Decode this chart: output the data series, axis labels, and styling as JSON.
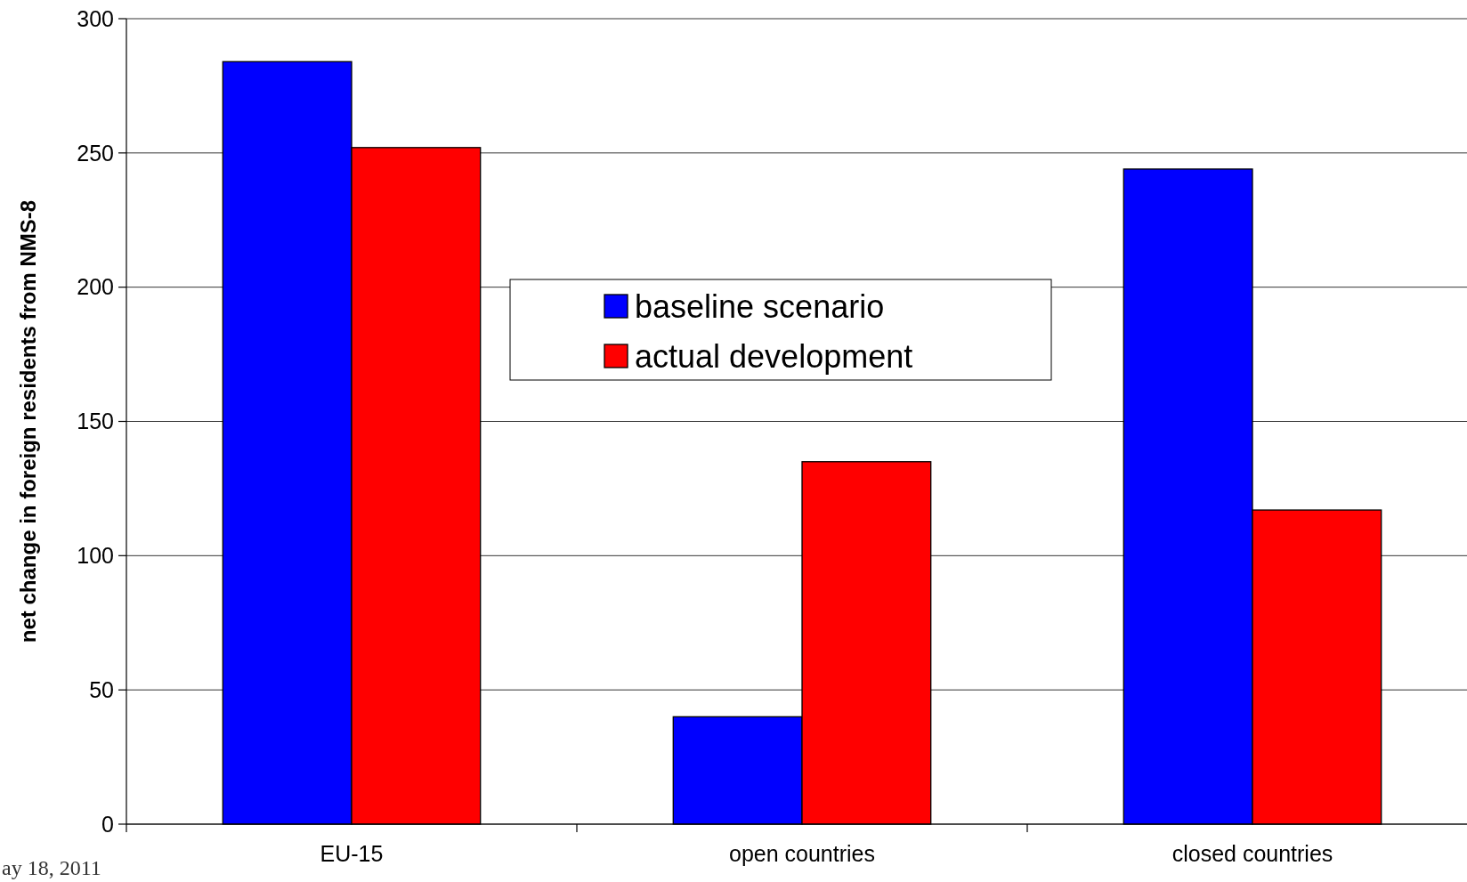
{
  "chart_data": {
    "type": "bar",
    "ylabel": "net change in foreign residents from NMS-8",
    "categories": [
      "EU-15",
      "open countries",
      "closed countries"
    ],
    "series": [
      {
        "name": "baseline scenario",
        "color": "#0000ff",
        "values": [
          284,
          40,
          244
        ]
      },
      {
        "name": "actual development",
        "color": "#ff0000",
        "values": [
          252,
          135,
          117
        ]
      }
    ],
    "ylim": [
      0,
      300
    ],
    "yticks": [
      0,
      50,
      100,
      150,
      200,
      250,
      300
    ],
    "grid": "y",
    "legend": "top",
    "annotations": [
      "ay 18, 2011"
    ]
  }
}
